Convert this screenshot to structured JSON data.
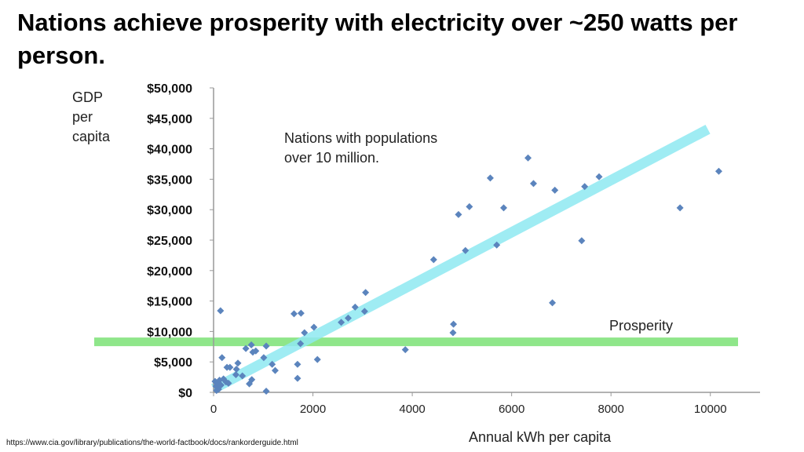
{
  "title": "Nations achieve prosperity with electricity over ~250 watts per person.",
  "source": "https://www.cia.gov/library/publications/the-world-factbook/docs/rankorderguide.html",
  "colors": {
    "points": "#5b84bd",
    "trendline": "#8fe9f2",
    "prosperity_line": "#8fe68a",
    "axis": "#999999"
  },
  "chart_data": {
    "type": "scatter",
    "ylabel_lines": [
      "GDP",
      "per",
      "capita"
    ],
    "xlabel": "Annual kWh per capita",
    "annotation_lines": [
      "Nations with populations",
      "over 10 million."
    ],
    "prosperity_label": "Prosperity",
    "prosperity_y": 8300,
    "trendline": {
      "x": [
        0,
        9950
      ],
      "y": [
        600,
        43200
      ]
    },
    "xlim": [
      0,
      11000
    ],
    "ylim": [
      0,
      50000
    ],
    "xticks": [
      0,
      2000,
      4000,
      6000,
      8000,
      10000
    ],
    "xtick_labels": [
      "0",
      "2000",
      "4000",
      "6000",
      "8000",
      "10000"
    ],
    "yticks": [
      0,
      5000,
      10000,
      15000,
      20000,
      25000,
      30000,
      35000,
      40000,
      45000,
      50000
    ],
    "ytick_labels": [
      "$0",
      "$5,000",
      "$10,000",
      "$15,000",
      "$20,000",
      "$25,000",
      "$30,000",
      "$35,000",
      "$40,000",
      "$45,000",
      "$50,000"
    ],
    "grid": false,
    "points": [
      [
        30,
        1800
      ],
      [
        50,
        1000
      ],
      [
        60,
        300
      ],
      [
        80,
        1500
      ],
      [
        100,
        500
      ],
      [
        120,
        2000
      ],
      [
        150,
        1200
      ],
      [
        200,
        2200
      ],
      [
        250,
        1700
      ],
      [
        140,
        13400
      ],
      [
        170,
        5700
      ],
      [
        270,
        4100
      ],
      [
        330,
        4100
      ],
      [
        490,
        4800
      ],
      [
        460,
        3800
      ],
      [
        450,
        2900
      ],
      [
        580,
        2700
      ],
      [
        300,
        1500
      ],
      [
        650,
        7200
      ],
      [
        760,
        7800
      ],
      [
        790,
        6600
      ],
      [
        850,
        6800
      ],
      [
        1060,
        7600
      ],
      [
        1010,
        5700
      ],
      [
        1180,
        4600
      ],
      [
        1240,
        3600
      ],
      [
        770,
        2100
      ],
      [
        720,
        1400
      ],
      [
        1060,
        200
      ],
      [
        1620,
        12900
      ],
      [
        1760,
        13000
      ],
      [
        1690,
        4600
      ],
      [
        1690,
        2300
      ],
      [
        1830,
        9800
      ],
      [
        1750,
        8000
      ],
      [
        2020,
        10700
      ],
      [
        2090,
        5400
      ],
      [
        2570,
        11500
      ],
      [
        2710,
        12200
      ],
      [
        2850,
        14000
      ],
      [
        3040,
        13300
      ],
      [
        3060,
        16400
      ],
      [
        6330,
        38500
      ],
      [
        5570,
        35200
      ],
      [
        6440,
        34300
      ],
      [
        6870,
        33200
      ],
      [
        7470,
        33800
      ],
      [
        7760,
        35400
      ],
      [
        10170,
        36300
      ],
      [
        5150,
        30500
      ],
      [
        4930,
        29200
      ],
      [
        5840,
        30300
      ],
      [
        9390,
        30300
      ],
      [
        4430,
        21800
      ],
      [
        5070,
        23300
      ],
      [
        5700,
        24200
      ],
      [
        7410,
        24900
      ],
      [
        6820,
        14700
      ],
      [
        4830,
        11200
      ],
      [
        4820,
        9800
      ],
      [
        3860,
        7000
      ]
    ]
  }
}
